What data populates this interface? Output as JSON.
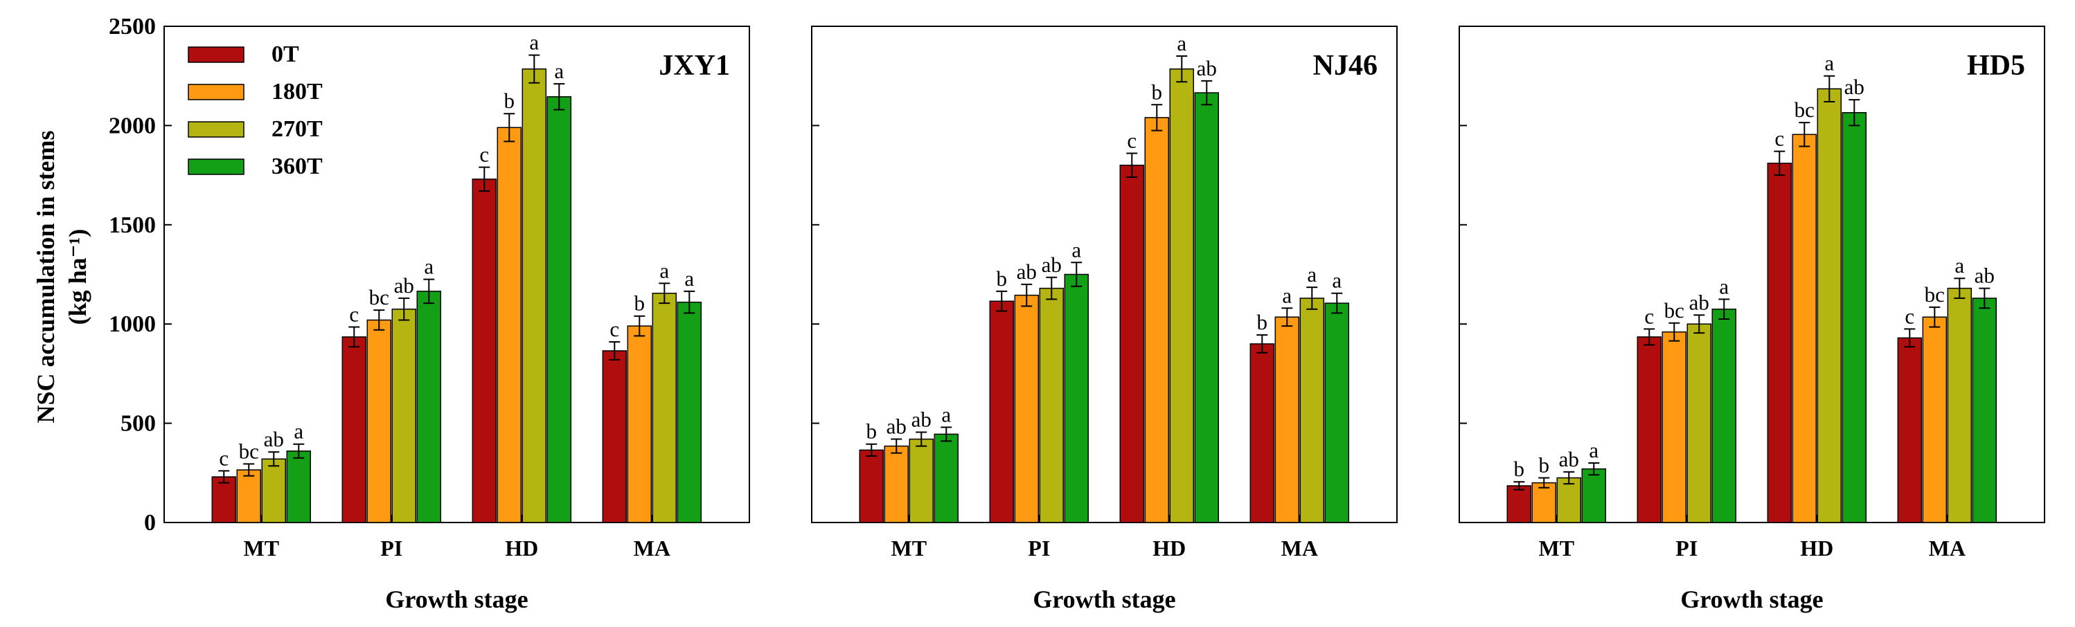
{
  "chart_data": [
    {
      "type": "bar",
      "panel": "JXY1",
      "categories": [
        "MT",
        "PI",
        "HD",
        "MA"
      ],
      "xlabel": "Growth stage",
      "ylabel": "NSC accumulation in stems (kg ha⁻¹)",
      "ylim": [
        0,
        2500
      ],
      "yticks": [
        0,
        500,
        1000,
        1500,
        2000,
        2500
      ],
      "series": [
        {
          "name": "0T",
          "values": [
            230,
            935,
            1730,
            865
          ],
          "errors": [
            30,
            50,
            60,
            45
          ],
          "letters": [
            "c",
            "c",
            "c",
            "c"
          ]
        },
        {
          "name": "180T",
          "values": [
            265,
            1020,
            1990,
            990
          ],
          "errors": [
            30,
            50,
            70,
            50
          ],
          "letters": [
            "bc",
            "bc",
            "b",
            "b"
          ]
        },
        {
          "name": "270T",
          "values": [
            320,
            1075,
            2285,
            1155
          ],
          "errors": [
            35,
            55,
            70,
            50
          ],
          "letters": [
            "ab",
            "ab",
            "a",
            "a"
          ]
        },
        {
          "name": "360T",
          "values": [
            360,
            1165,
            2145,
            1110
          ],
          "errors": [
            35,
            60,
            65,
            55
          ],
          "letters": [
            "a",
            "a",
            "a",
            "a"
          ]
        }
      ]
    },
    {
      "type": "bar",
      "panel": "NJ46",
      "categories": [
        "MT",
        "PI",
        "HD",
        "MA"
      ],
      "xlabel": "Growth stage",
      "ylim": [
        0,
        2500
      ],
      "series": [
        {
          "name": "0T",
          "values": [
            365,
            1115,
            1800,
            900
          ],
          "errors": [
            30,
            50,
            60,
            45
          ],
          "letters": [
            "b",
            "b",
            "c",
            "b"
          ]
        },
        {
          "name": "180T",
          "values": [
            385,
            1145,
            2040,
            1035
          ],
          "errors": [
            35,
            55,
            65,
            45
          ],
          "letters": [
            "ab",
            "ab",
            "b",
            "a"
          ]
        },
        {
          "name": "270T",
          "values": [
            420,
            1180,
            2285,
            1130
          ],
          "errors": [
            35,
            55,
            65,
            55
          ],
          "letters": [
            "ab",
            "ab",
            "a",
            "a"
          ]
        },
        {
          "name": "360T",
          "values": [
            445,
            1250,
            2165,
            1105
          ],
          "errors": [
            35,
            60,
            60,
            50
          ],
          "letters": [
            "a",
            "a",
            "ab",
            "a"
          ]
        }
      ]
    },
    {
      "type": "bar",
      "panel": "HD5",
      "categories": [
        "MT",
        "PI",
        "HD",
        "MA"
      ],
      "xlabel": "Growth stage",
      "ylim": [
        0,
        2500
      ],
      "series": [
        {
          "name": "0T",
          "values": [
            185,
            935,
            1810,
            930
          ],
          "errors": [
            20,
            40,
            60,
            45
          ],
          "letters": [
            "b",
            "c",
            "c",
            "c"
          ]
        },
        {
          "name": "180T",
          "values": [
            200,
            960,
            1955,
            1035
          ],
          "errors": [
            25,
            45,
            60,
            50
          ],
          "letters": [
            "b",
            "bc",
            "bc",
            "bc"
          ]
        },
        {
          "name": "270T",
          "values": [
            225,
            1000,
            2185,
            1180
          ],
          "errors": [
            30,
            45,
            65,
            50
          ],
          "letters": [
            "ab",
            "ab",
            "a",
            "a"
          ]
        },
        {
          "name": "360T",
          "values": [
            270,
            1075,
            2065,
            1130
          ],
          "errors": [
            30,
            50,
            65,
            50
          ],
          "letters": [
            "a",
            "a",
            "ab",
            "ab"
          ]
        }
      ]
    }
  ],
  "legend": {
    "placement": "top-left",
    "items": [
      "0T",
      "180T",
      "270T",
      "360T"
    ]
  },
  "colors": {
    "0T": "#B00E0E",
    "180T": "#FF9A12",
    "270T": "#B5B511",
    "360T": "#13A017"
  },
  "y_axis_title_line1": "NSC accumulation in stems",
  "y_axis_title_line2": "(kg ha⁻¹)"
}
